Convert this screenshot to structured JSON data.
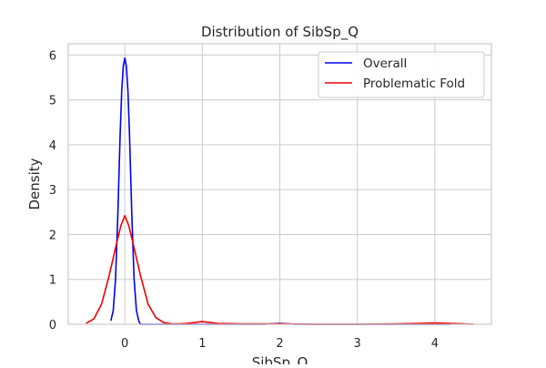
{
  "chart_data": {
    "type": "line",
    "title": "Distribution of SibSp_Q",
    "xlabel": "SibSp_Q",
    "ylabel": "Density",
    "xlim": [
      -0.73,
      4.73
    ],
    "ylim": [
      0,
      6.25
    ],
    "xticks": [
      0,
      1,
      2,
      3,
      4
    ],
    "yticks": [
      0,
      1,
      2,
      3,
      4,
      5,
      6
    ],
    "grid": true,
    "legend_position": "top-right",
    "series": [
      {
        "name": "Overall",
        "color": "#0000ee",
        "x": [
          -0.18,
          -0.15,
          -0.12,
          -0.09,
          -0.06,
          -0.04,
          -0.02,
          0.0,
          0.02,
          0.04,
          0.06,
          0.09,
          0.12,
          0.15,
          0.18,
          0.2,
          0.6,
          1.0,
          1.4,
          1.8,
          2.0,
          2.2,
          2.6,
          3.0,
          3.4,
          3.8,
          4.2
        ],
        "y": [
          0.08,
          0.3,
          1.0,
          2.45,
          4.25,
          5.2,
          5.75,
          5.93,
          5.75,
          5.2,
          4.25,
          2.45,
          1.0,
          0.3,
          0.08,
          0.0,
          0.0,
          0.0,
          0.0,
          0.0,
          0.02,
          0.0,
          0.0,
          0.0,
          0.0,
          0.0,
          0.0
        ]
      },
      {
        "name": "Problematic Fold",
        "color": "#ee0000",
        "x": [
          -0.5,
          -0.4,
          -0.3,
          -0.2,
          -0.1,
          -0.05,
          0.0,
          0.05,
          0.1,
          0.2,
          0.3,
          0.4,
          0.5,
          0.6,
          0.7,
          0.8,
          0.9,
          1.0,
          1.1,
          1.2,
          1.5,
          2.0,
          2.5,
          3.0,
          3.5,
          3.8,
          4.0,
          4.2,
          4.5
        ],
        "y": [
          0.02,
          0.12,
          0.45,
          1.1,
          1.85,
          2.2,
          2.42,
          2.2,
          1.85,
          1.1,
          0.45,
          0.15,
          0.04,
          0.01,
          0.01,
          0.02,
          0.04,
          0.06,
          0.04,
          0.02,
          0.01,
          0.01,
          0.0,
          0.0,
          0.01,
          0.02,
          0.03,
          0.02,
          0.0
        ]
      }
    ]
  }
}
